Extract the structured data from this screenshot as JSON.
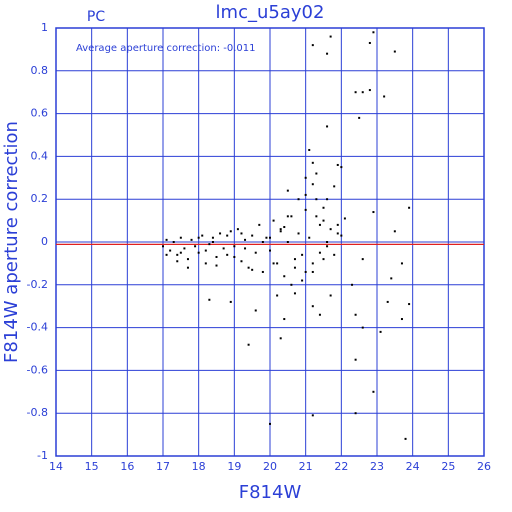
{
  "chart_data": {
    "type": "scatter",
    "title": "lmc_u5ay02",
    "corner_label": "PC",
    "annotation": "Average aperture correction: -0.011",
    "reference_line": -0.011,
    "x_label": "F814W",
    "y_label": "F814W aperture correction",
    "xlim": [
      14,
      26
    ],
    "xticks": [
      14,
      15,
      16,
      17,
      18,
      19,
      20,
      21,
      22,
      23,
      24,
      25,
      26
    ],
    "ylim": [
      -1,
      1
    ],
    "yticks": [
      -1,
      -0.8,
      -0.6,
      -0.4,
      -0.2,
      0,
      0.2,
      0.4,
      0.6,
      0.8,
      1
    ],
    "grid": true,
    "color": "#000000",
    "grid_color": "#2b3fd6",
    "reference_color": "#e02020",
    "x": [
      21.2,
      21.6,
      21.7,
      22.9,
      22.8,
      23.5,
      22.4,
      22.5,
      22.6,
      22.8,
      23.2,
      21.6,
      21.1,
      21.9,
      22.0,
      21.2,
      21.3,
      20.5,
      21.2,
      21.8,
      23.9,
      22.9,
      22.1,
      21.5,
      20.8,
      21.6,
      21.0,
      20.5,
      21.4,
      20.3,
      23.7,
      23.4,
      23.5,
      22.6,
      22.3,
      21.2,
      20.6,
      20.7,
      21.0,
      22.4,
      23.3,
      23.9,
      23.7,
      22.6,
      23.1,
      21.4,
      21.2,
      19.4,
      20.3,
      19.6,
      20.4,
      18.9,
      22.4,
      22.9,
      22.4,
      21.2,
      20.0,
      23.8,
      18.3,
      21.7,
      20.2,
      17.0,
      17.1,
      17.2,
      17.3,
      17.4,
      17.5,
      17.6,
      17.7,
      17.8,
      17.9,
      18.0,
      18.1,
      18.2,
      18.3,
      18.4,
      18.5,
      18.6,
      18.7,
      18.8,
      18.9,
      19.0,
      19.1,
      19.2,
      19.3,
      19.4,
      19.5,
      19.6,
      19.7,
      19.8,
      19.9,
      20.0,
      20.1,
      20.2,
      20.3,
      20.4,
      20.5,
      20.6,
      20.7,
      20.8,
      20.9,
      21.0,
      21.1,
      21.2,
      21.3,
      21.4,
      21.5,
      21.6,
      21.7,
      21.8,
      21.9,
      17.1,
      17.4,
      17.7,
      18.0,
      18.2,
      18.5,
      18.8,
      19.0,
      19.2,
      19.5,
      19.8,
      20.1,
      20.4,
      20.7,
      21.0,
      21.3,
      21.6,
      21.9,
      22.0,
      17.5,
      18.4,
      19.3,
      20.0,
      20.9,
      21.5
    ],
    "y": [
      0.92,
      0.88,
      0.96,
      0.98,
      0.93,
      0.89,
      0.7,
      0.58,
      0.7,
      0.71,
      0.68,
      0.54,
      0.43,
      0.36,
      0.35,
      0.37,
      0.32,
      0.24,
      0.27,
      0.26,
      0.16,
      0.14,
      0.11,
      0.16,
      0.2,
      0.2,
      0.22,
      0.12,
      0.08,
      0.05,
      -0.1,
      -0.17,
      0.05,
      -0.08,
      -0.2,
      -0.14,
      -0.2,
      -0.24,
      -0.14,
      -0.34,
      -0.28,
      -0.29,
      -0.36,
      -0.4,
      -0.42,
      -0.34,
      -0.3,
      -0.48,
      -0.45,
      -0.32,
      -0.36,
      -0.28,
      -0.55,
      -0.7,
      -0.8,
      -0.81,
      -0.85,
      -0.92,
      -0.27,
      -0.25,
      -0.25,
      -0.02,
      0.01,
      -0.04,
      0.0,
      -0.06,
      0.02,
      -0.03,
      -0.08,
      0.01,
      -0.02,
      -0.05,
      0.03,
      -0.1,
      -0.01,
      0.02,
      -0.07,
      0.04,
      -0.03,
      -0.06,
      0.05,
      -0.02,
      0.06,
      -0.09,
      0.01,
      -0.12,
      0.03,
      -0.05,
      0.08,
      -0.14,
      0.02,
      -0.04,
      0.1,
      -0.1,
      0.06,
      -0.16,
      0.0,
      0.12,
      -0.08,
      0.04,
      -0.18,
      0.15,
      0.02,
      -0.1,
      0.2,
      -0.05,
      0.1,
      0.0,
      0.06,
      -0.06,
      0.08,
      -0.06,
      -0.09,
      -0.12,
      0.02,
      -0.04,
      -0.11,
      0.03,
      -0.07,
      0.04,
      -0.13,
      0.0,
      -0.1,
      0.07,
      -0.12,
      0.3,
      0.12,
      -0.02,
      0.04,
      0.03,
      -0.05,
      0.0,
      -0.03,
      0.02,
      -0.06,
      -0.08
    ]
  }
}
